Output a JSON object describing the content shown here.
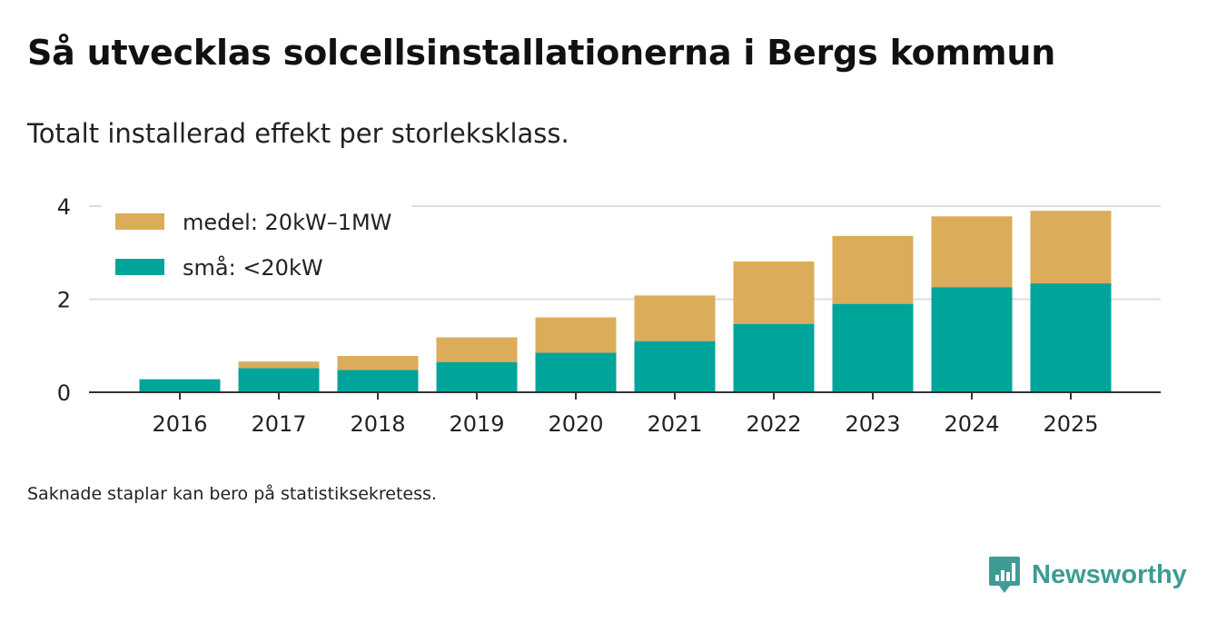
{
  "title": "Så utvecklas solcellsinstallationerna i Bergs kommun",
  "subtitle": "Totalt installerad effekt per storleksklass.",
  "footnote": "Saknade staplar kan bero på statistiksekretess.",
  "brand": {
    "name": "Newsworthy",
    "logo_icon": "newsworthy-logo-icon",
    "color": "#3f9b96"
  },
  "chart_data": {
    "type": "bar",
    "stacked": true,
    "title": "Så utvecklas solcellsinstallationerna i Bergs kommun",
    "subtitle": "Totalt installerad effekt per storleksklass.",
    "xlabel": "",
    "ylabel": "",
    "categories": [
      "2016",
      "2017",
      "2018",
      "2019",
      "2020",
      "2021",
      "2022",
      "2023",
      "2024",
      "2025"
    ],
    "series": [
      {
        "name": "små: <20kW",
        "color": "#00a49a",
        "values": [
          0.28,
          0.52,
          0.48,
          0.65,
          0.85,
          1.1,
          1.47,
          1.9,
          2.26,
          2.34
        ]
      },
      {
        "name": "medel: 20kW–1MW",
        "color": "#dbad5a",
        "values": [
          0.0,
          0.14,
          0.3,
          0.53,
          0.76,
          0.98,
          1.34,
          1.46,
          1.52,
          1.56
        ]
      }
    ],
    "ylim": [
      0,
      4
    ],
    "yticks": [
      0,
      2,
      4
    ],
    "grid": true,
    "legend": "top-left"
  }
}
